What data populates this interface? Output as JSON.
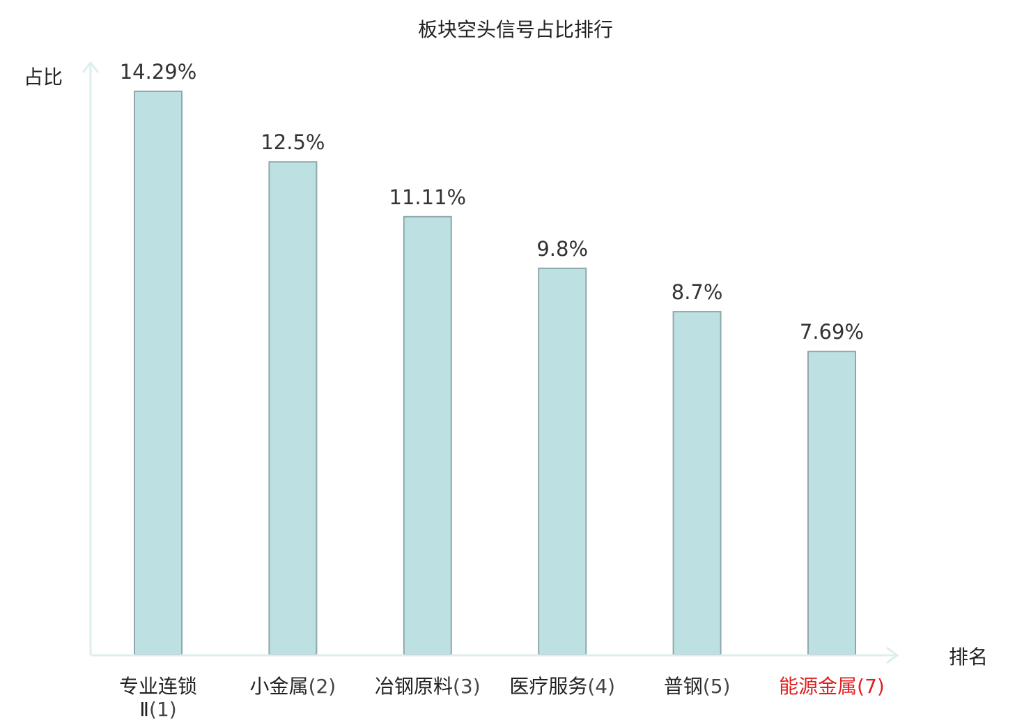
{
  "chart_data": {
    "type": "bar",
    "title": "板块空头信号占比排行",
    "ylabel": "占比",
    "xlabel": "排名",
    "categories": [
      {
        "name_lines": [
          "专业连锁",
          "Ⅱ"
        ],
        "rank": "(1)",
        "highlight": false
      },
      {
        "name_lines": [
          "小金属"
        ],
        "rank": "(2)",
        "highlight": false
      },
      {
        "name_lines": [
          "冶钢原料"
        ],
        "rank": "(3)",
        "highlight": false
      },
      {
        "name_lines": [
          "医疗服务"
        ],
        "rank": "(4)",
        "highlight": false
      },
      {
        "name_lines": [
          "普钢"
        ],
        "rank": "(5)",
        "highlight": false
      },
      {
        "name_lines": [
          "能源金属"
        ],
        "rank": "(7)",
        "highlight": true
      }
    ],
    "values": [
      14.29,
      12.5,
      11.11,
      9.8,
      8.7,
      7.69
    ],
    "value_labels": [
      "14.29%",
      "12.5%",
      "11.11%",
      "9.8%",
      "8.7%",
      "7.69%"
    ],
    "ylim": [
      0,
      14.29
    ],
    "grid": false,
    "colors": {
      "bar_fill": "#bde1e3",
      "bar_stroke": "#8fa8aa",
      "axis": "#dcefee",
      "highlight_text": "#e02020"
    }
  }
}
